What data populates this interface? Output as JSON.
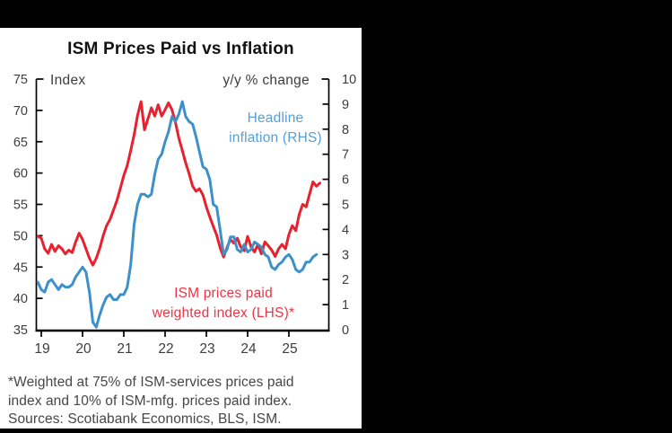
{
  "page": {
    "canvas_background": "#000000",
    "panel_background": "#ffffff"
  },
  "chart": {
    "title": "ISM Prices Paid vs Inflation",
    "left_axis_unit": "Index",
    "right_axis_unit": "y/y % change",
    "annotations": {
      "blue_line1": "Headline",
      "blue_line2": "inflation (RHS)",
      "red_line1": "ISM prices paid",
      "red_line2": "weighted index (LHS)*"
    },
    "footnote_line1": "*Weighted at 75% of ISM-services prices paid",
    "footnote_line2": "index and 10% of ISM-mfg. prices paid index.",
    "footnote_line3": "Sources: Scotiabank Economics, BLS, ISM.",
    "colors": {
      "red_line": "#e8212e",
      "red_label": "#ee3444",
      "blue_line": "#3e90c8",
      "blue_label": "#55a0d5",
      "axis": "#000000",
      "tick_text": "#3d3d3d",
      "title_text": "#121212",
      "footnote_text": "#464646"
    }
  },
  "chart_data": {
    "type": "line",
    "title": "ISM Prices Paid vs Inflation",
    "x_start": "2018-12",
    "frequency": "monthly",
    "x_tick_labels": [
      "19",
      "20",
      "21",
      "22",
      "23",
      "24",
      "25"
    ],
    "left_axis": {
      "label": "Index",
      "min": 35,
      "max": 75,
      "ticks": [
        75,
        70,
        65,
        60,
        55,
        50,
        45,
        40,
        35
      ]
    },
    "right_axis": {
      "label": "y/y % change",
      "min": 0,
      "max": 10,
      "ticks": [
        10,
        9,
        8,
        7,
        6,
        5,
        4,
        3,
        2,
        1,
        0
      ]
    },
    "grid": false,
    "legend_position": "annotations-inside-plot",
    "series": [
      {
        "name": "ISM prices paid weighted index (LHS)*",
        "axis": "left",
        "color": "#e8212e",
        "values": [
          49.9,
          49.6,
          47.9,
          47.2,
          48.6,
          47.5,
          48.4,
          47.9,
          47.1,
          47.7,
          47.3,
          49.0,
          50.4,
          49.4,
          47.9,
          46.4,
          45.3,
          46.4,
          48.0,
          50.0,
          51.6,
          52.6,
          54.1,
          55.6,
          57.6,
          59.6,
          61.2,
          63.6,
          66.1,
          69.2,
          71.4,
          66.9,
          68.6,
          70.4,
          69.1,
          70.9,
          69.1,
          70.1,
          71.2,
          70.1,
          68.1,
          65.6,
          63.6,
          61.6,
          59.9,
          57.9,
          57.1,
          57.5,
          56.5,
          54.6,
          53.0,
          51.5,
          50.1,
          48.1,
          46.6,
          48.1,
          49.4,
          48.8,
          49.6,
          48.2,
          47.6,
          49.9,
          48.2,
          47.4,
          48.6,
          47.1,
          49.0,
          48.4,
          47.7,
          46.7,
          47.9,
          48.6,
          47.9,
          50.2,
          51.6,
          50.8,
          53.4,
          55.0,
          54.6,
          56.6,
          58.6,
          57.9,
          58.4
        ]
      },
      {
        "name": "Headline inflation (RHS)",
        "axis": "right",
        "color": "#3e90c8",
        "values": [
          1.9,
          1.6,
          1.5,
          1.9,
          2.0,
          1.8,
          1.6,
          1.8,
          1.7,
          1.7,
          1.8,
          2.1,
          2.3,
          2.5,
          2.3,
          1.5,
          0.3,
          0.1,
          0.6,
          1.0,
          1.3,
          1.4,
          1.2,
          1.2,
          1.4,
          1.4,
          1.7,
          2.6,
          4.2,
          5.0,
          5.4,
          5.4,
          5.3,
          5.4,
          6.2,
          6.8,
          7.0,
          7.5,
          7.9,
          8.5,
          8.3,
          8.6,
          9.1,
          8.5,
          8.3,
          8.2,
          7.7,
          7.1,
          6.5,
          6.4,
          6.0,
          5.0,
          4.9,
          4.0,
          3.0,
          3.2,
          3.7,
          3.7,
          3.2,
          3.1,
          3.4,
          3.1,
          3.2,
          3.5,
          3.4,
          3.3,
          3.0,
          2.9,
          2.5,
          2.4,
          2.6,
          2.7,
          2.9,
          3.0,
          2.8,
          2.4,
          2.3,
          2.4,
          2.7,
          2.7,
          2.9,
          3.0
        ]
      }
    ]
  }
}
